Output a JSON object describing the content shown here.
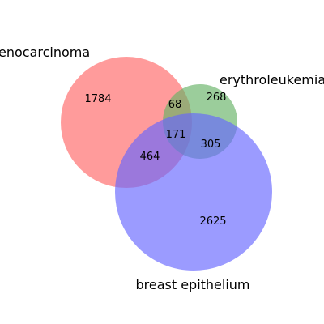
{
  "chart_data": {
    "type": "venn",
    "sets": [
      {
        "name": "adenocarcinoma",
        "color": "#ff6666",
        "visible_label": "enocarcinoma"
      },
      {
        "name": "erythroleukemia",
        "color": "#66b266",
        "visible_label": "erythroleukemia"
      },
      {
        "name": "breast epithelium",
        "color": "#6666ff",
        "visible_label": "breast epithelium"
      }
    ],
    "regions": {
      "adenocarcinoma_only": "1784",
      "erythroleukemia_only": "268",
      "breast_epithelium_only": "2625",
      "adenocarcinoma_erythroleukemia": "68",
      "adenocarcinoma_breast_epithelium": "464",
      "erythroleukemia_breast_epithelium": "305",
      "all_three": "171"
    }
  }
}
